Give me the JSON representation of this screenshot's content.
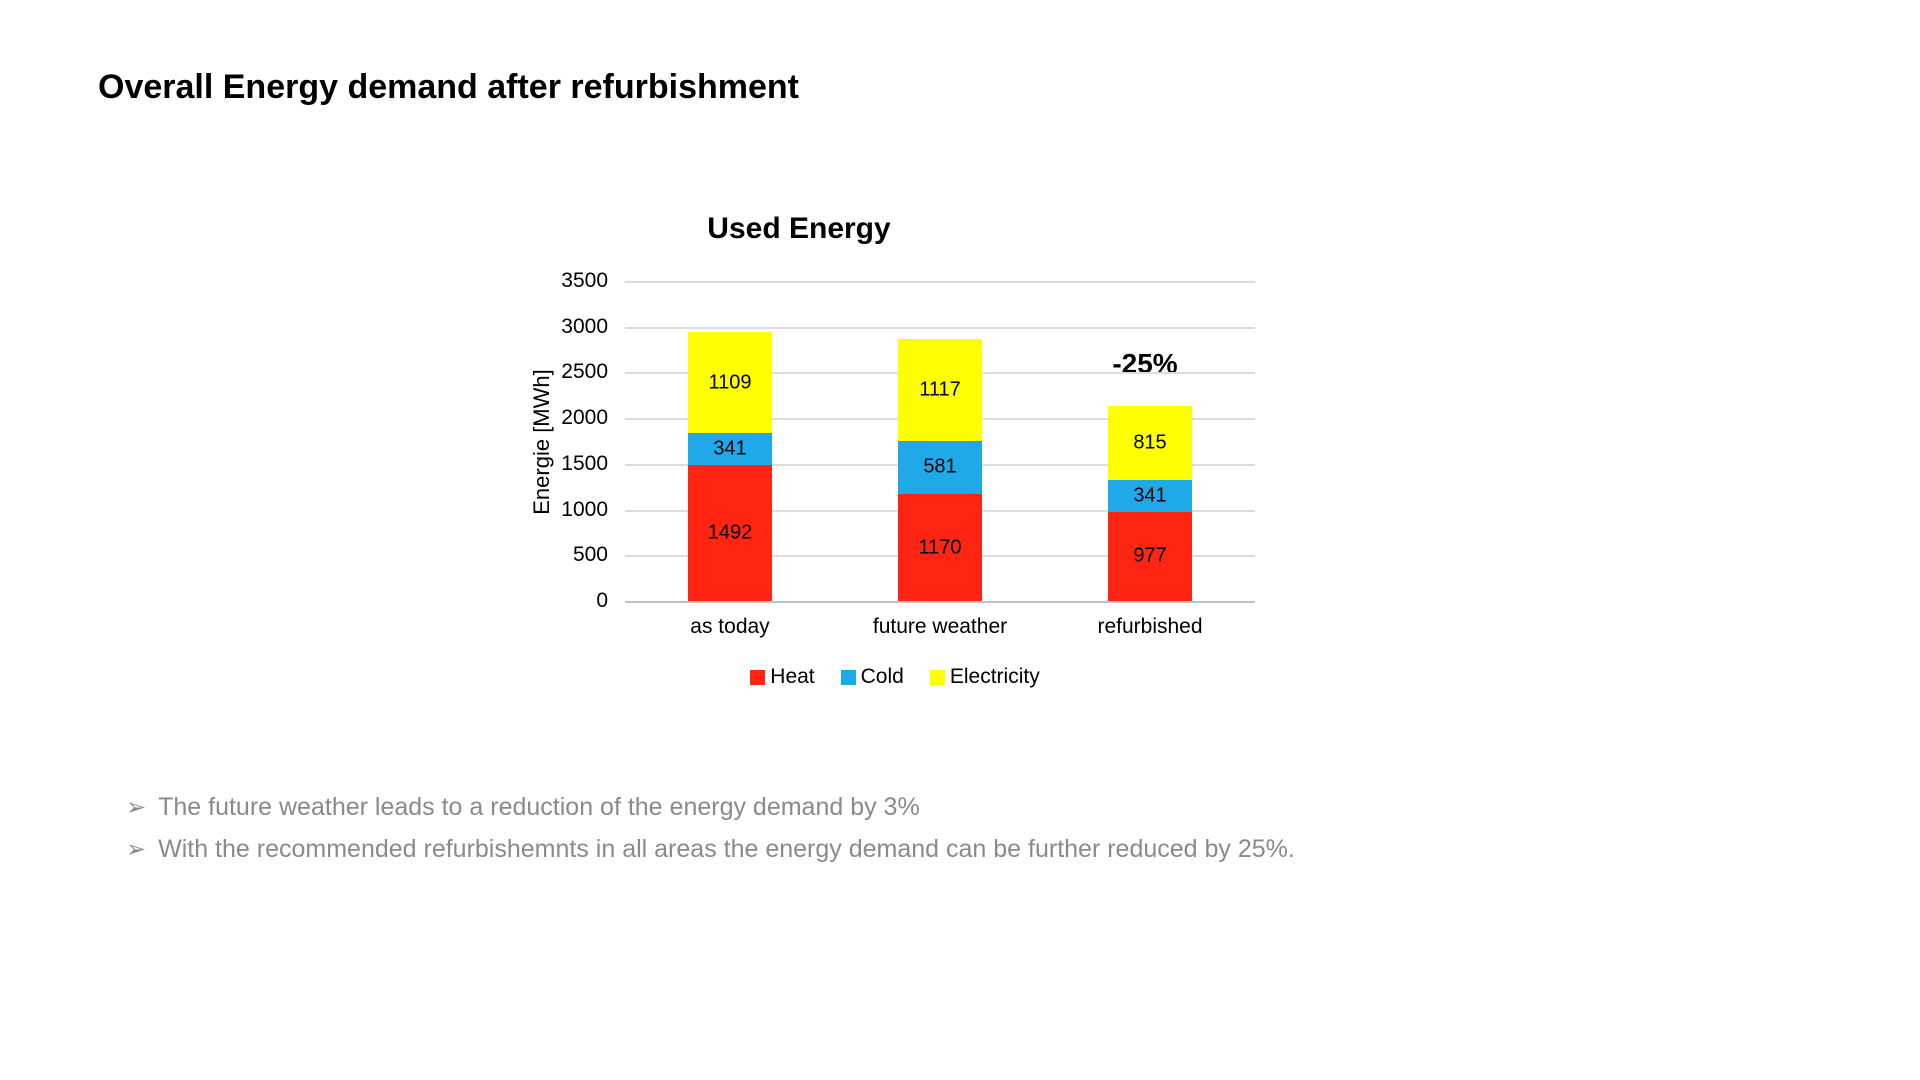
{
  "page_title": "Overall Energy demand after refurbishment",
  "chart_data": {
    "type": "bar",
    "stacked": true,
    "title": "Used Energy",
    "ylabel": "Energie [MWh]",
    "xlabel": "",
    "categories": [
      "as today",
      "future weather",
      "refurbished"
    ],
    "series": [
      {
        "name": "Heat",
        "color": "#FF2512",
        "values": [
          1492,
          1170,
          977
        ]
      },
      {
        "name": "Cold",
        "color": "#1FA9E9",
        "values": [
          341,
          581,
          341
        ]
      },
      {
        "name": "Electricity",
        "color": "#FFFF00",
        "values": [
          1109,
          1117,
          815
        ]
      }
    ],
    "totals": [
      2942,
      2868,
      2133
    ],
    "ylim": [
      0,
      3500
    ],
    "yticks": [
      0,
      500,
      1000,
      1500,
      2000,
      2500,
      3000,
      3500
    ],
    "grid": true,
    "legend_position": "bottom",
    "annotation": {
      "text": "-25%",
      "category_index": 2
    },
    "gridline_color": "#DCDCDC",
    "axisline_color": "#C0C0C0"
  },
  "bullets": [
    {
      "marker": "➢",
      "text": "The future weather leads to a reduction of the energy demand by 3%"
    },
    {
      "marker": "➢",
      "text": "With the recommended refurbishemnts in all areas the energy demand can be further reduced by 25%."
    }
  ]
}
